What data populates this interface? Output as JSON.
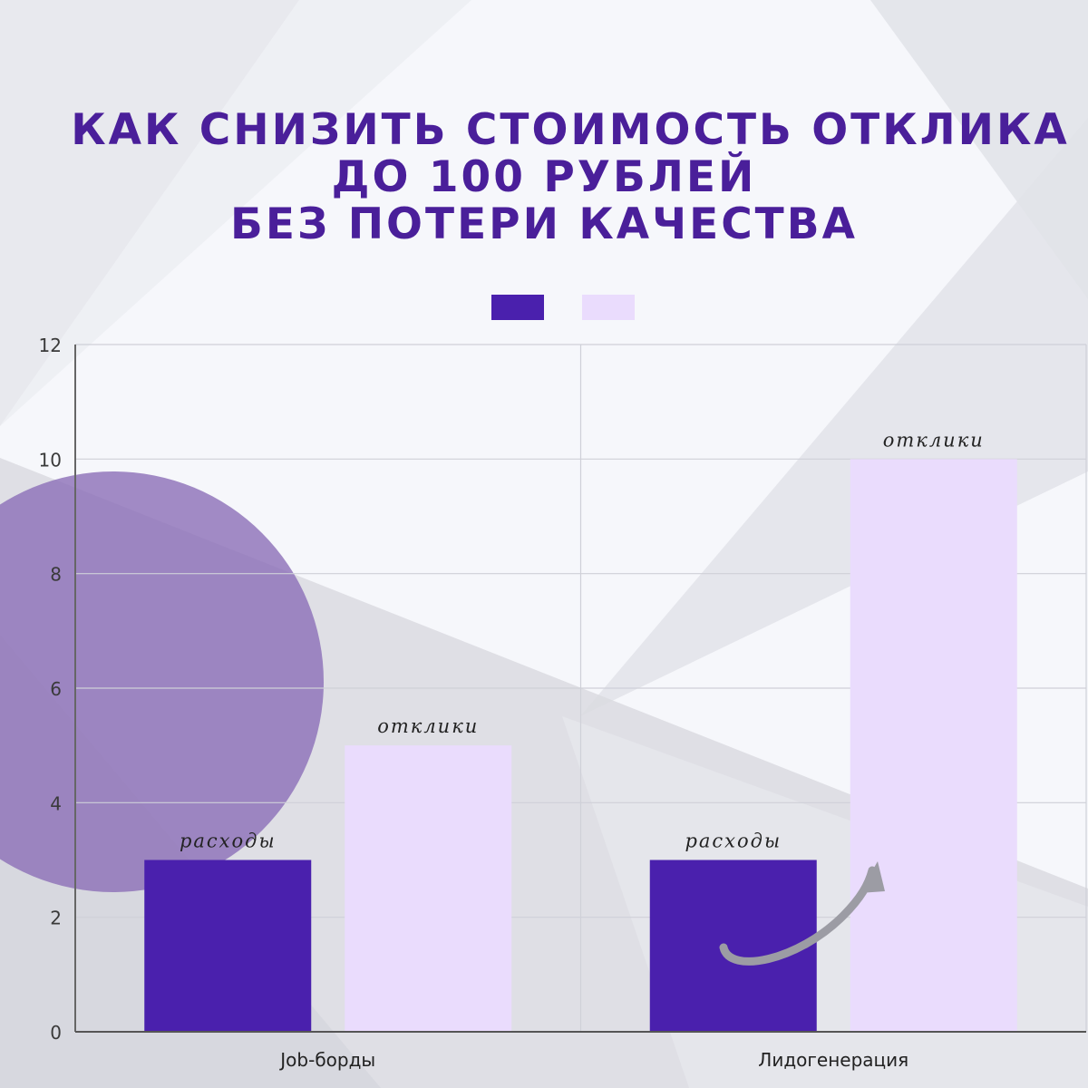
{
  "header": {
    "title_lines": [
      "Как снизить стоимость отклика",
      "до 100 рублей",
      "без потери качества"
    ]
  },
  "colors": {
    "series_1": "#4a20ad",
    "series_2": "#eadcfd",
    "title": "#4a1f9a",
    "decor_circle": "#8e71b8"
  },
  "chart_data": {
    "type": "bar",
    "title": "Как снизить стоимость отклика до 100 рублей без потери качества",
    "categories": [
      "Job-борды",
      "Лидогенерация"
    ],
    "series": [
      {
        "values": [
          3,
          3
        ],
        "data_labels": [
          "расходы",
          "расходы"
        ],
        "color": "#4a20ad"
      },
      {
        "values": [
          5,
          10
        ],
        "data_labels": [
          "отклики",
          "отклики"
        ],
        "color": "#eadcfd"
      }
    ],
    "ylim": [
      0,
      12
    ],
    "yticks": [
      0,
      2,
      4,
      6,
      8,
      10,
      12
    ],
    "grid": true,
    "legend": "top-center",
    "legend_labels": [
      "",
      ""
    ],
    "annotation": "curved arrow pointing up from the first bar to the second bar in Лидогенерация"
  }
}
